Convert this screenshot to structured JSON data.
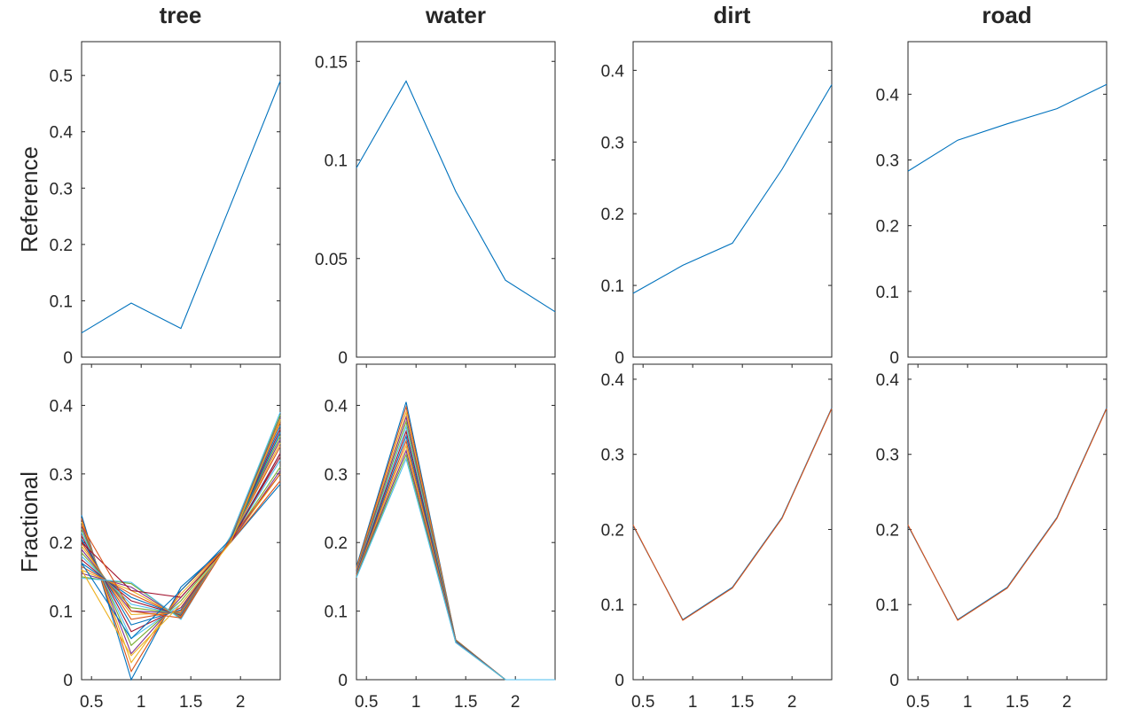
{
  "colors": {
    "reference_line": "#0072BD",
    "axes": "#262626",
    "fractional_palette": [
      "#0072BD",
      "#D95319",
      "#EDB120",
      "#7E2F8E",
      "#77AC30",
      "#4DBEEE",
      "#A2142F"
    ]
  },
  "column_titles": [
    "tree",
    "water",
    "dirt",
    "road"
  ],
  "row_labels": [
    "Reference",
    "Fractional"
  ],
  "chart_data": [
    {
      "type": "line",
      "name": "tree-reference",
      "title": "tree",
      "ylabel": "Reference",
      "x": [
        0.4,
        0.9,
        1.4,
        1.9,
        2.4
      ],
      "xlim": [
        0.4,
        2.4
      ],
      "ylim": [
        0,
        0.56
      ],
      "yticks": [
        0,
        0.1,
        0.2,
        0.3,
        0.4,
        0.5
      ],
      "ytick_labels": [
        "0",
        "0.1",
        "0.2",
        "0.3",
        "0.4",
        "0.5"
      ],
      "xticks": [],
      "xtick_labels": [],
      "series": [
        {
          "values": [
            0.043,
            0.096,
            0.051,
            0.27,
            0.49
          ]
        }
      ]
    },
    {
      "type": "line",
      "name": "water-reference",
      "title": "water",
      "ylabel": "",
      "x": [
        0.4,
        0.9,
        1.4,
        1.9,
        2.4
      ],
      "xlim": [
        0.4,
        2.4
      ],
      "ylim": [
        0,
        0.16
      ],
      "yticks": [
        0,
        0.05,
        0.1,
        0.15
      ],
      "ytick_labels": [
        "0",
        "0.05",
        "0.1",
        "0.15"
      ],
      "xticks": [],
      "xtick_labels": [],
      "series": [
        {
          "values": [
            0.096,
            0.14,
            0.084,
            0.039,
            0.023
          ]
        }
      ]
    },
    {
      "type": "line",
      "name": "dirt-reference",
      "title": "dirt",
      "ylabel": "",
      "x": [
        0.4,
        0.9,
        1.4,
        1.9,
        2.4
      ],
      "xlim": [
        0.4,
        2.4
      ],
      "ylim": [
        0,
        0.44
      ],
      "yticks": [
        0,
        0.1,
        0.2,
        0.3,
        0.4
      ],
      "ytick_labels": [
        "0",
        "0.1",
        "0.2",
        "0.3",
        "0.4"
      ],
      "xticks": [],
      "xtick_labels": [],
      "series": [
        {
          "values": [
            0.089,
            0.128,
            0.159,
            0.262,
            0.38
          ]
        }
      ]
    },
    {
      "type": "line",
      "name": "road-reference",
      "title": "road",
      "ylabel": "",
      "x": [
        0.4,
        0.9,
        1.4,
        1.9,
        2.4
      ],
      "xlim": [
        0.4,
        2.4
      ],
      "ylim": [
        0,
        0.48
      ],
      "yticks": [
        0,
        0.1,
        0.2,
        0.3,
        0.4
      ],
      "ytick_labels": [
        "0",
        "0.1",
        "0.2",
        "0.3",
        "0.4"
      ],
      "xticks": [],
      "xtick_labels": [],
      "series": [
        {
          "values": [
            0.283,
            0.33,
            0.355,
            0.378,
            0.415
          ]
        }
      ]
    },
    {
      "type": "line",
      "name": "tree-fractional",
      "title": "",
      "ylabel": "Fractional",
      "x": [
        0.4,
        0.9,
        1.4,
        1.9,
        2.4
      ],
      "xlim": [
        0.4,
        2.4
      ],
      "ylim": [
        0,
        0.46
      ],
      "yticks": [
        0,
        0.1,
        0.2,
        0.3,
        0.4
      ],
      "ytick_labels": [
        "0",
        "0.1",
        "0.2",
        "0.3",
        "0.4"
      ],
      "xticks": [
        0.5,
        1,
        1.5,
        2
      ],
      "xtick_labels": [
        "0.5",
        "1",
        "1.5",
        "2"
      ],
      "series": [
        {
          "values": [
            0.24,
            0.0,
            0.135,
            0.2,
            0.285
          ]
        },
        {
          "values": [
            0.235,
            0.012,
            0.13,
            0.2,
            0.29
          ]
        },
        {
          "values": [
            0.23,
            0.025,
            0.125,
            0.2,
            0.3
          ]
        },
        {
          "values": [
            0.225,
            0.038,
            0.12,
            0.2,
            0.305
          ]
        },
        {
          "values": [
            0.22,
            0.05,
            0.115,
            0.202,
            0.31
          ]
        },
        {
          "values": [
            0.215,
            0.06,
            0.11,
            0.202,
            0.32
          ]
        },
        {
          "values": [
            0.21,
            0.07,
            0.105,
            0.203,
            0.325
          ]
        },
        {
          "values": [
            0.205,
            0.08,
            0.102,
            0.203,
            0.33
          ]
        },
        {
          "values": [
            0.2,
            0.088,
            0.1,
            0.204,
            0.34
          ]
        },
        {
          "values": [
            0.195,
            0.095,
            0.098,
            0.204,
            0.345
          ]
        },
        {
          "values": [
            0.19,
            0.1,
            0.097,
            0.205,
            0.35
          ]
        },
        {
          "values": [
            0.185,
            0.105,
            0.096,
            0.205,
            0.355
          ]
        },
        {
          "values": [
            0.18,
            0.11,
            0.095,
            0.206,
            0.36
          ]
        },
        {
          "values": [
            0.175,
            0.115,
            0.094,
            0.206,
            0.365
          ]
        },
        {
          "values": [
            0.17,
            0.12,
            0.093,
            0.207,
            0.37
          ]
        },
        {
          "values": [
            0.165,
            0.125,
            0.092,
            0.207,
            0.375
          ]
        },
        {
          "values": [
            0.16,
            0.13,
            0.091,
            0.208,
            0.378
          ]
        },
        {
          "values": [
            0.155,
            0.135,
            0.09,
            0.208,
            0.382
          ]
        },
        {
          "values": [
            0.15,
            0.14,
            0.089,
            0.209,
            0.386
          ]
        },
        {
          "values": [
            0.148,
            0.142,
            0.088,
            0.209,
            0.39
          ]
        },
        {
          "values": [
            0.2,
            0.13,
            0.12,
            0.2,
            0.33
          ]
        },
        {
          "values": [
            0.17,
            0.06,
            0.13,
            0.205,
            0.36
          ]
        },
        {
          "values": [
            0.225,
            0.1,
            0.09,
            0.205,
            0.3
          ]
        },
        {
          "values": [
            0.16,
            0.035,
            0.11,
            0.2,
            0.38
          ]
        }
      ]
    },
    {
      "type": "line",
      "name": "water-fractional",
      "title": "",
      "ylabel": "",
      "x": [
        0.4,
        0.9,
        1.4,
        1.9,
        2.4
      ],
      "xlim": [
        0.4,
        2.4
      ],
      "ylim": [
        0,
        0.46
      ],
      "yticks": [
        0,
        0.1,
        0.2,
        0.3,
        0.4
      ],
      "ytick_labels": [
        "0",
        "0.1",
        "0.2",
        "0.3",
        "0.4"
      ],
      "xticks": [
        0.5,
        1,
        1.5,
        2
      ],
      "xtick_labels": [
        "0.5",
        "1",
        "1.5",
        "2"
      ],
      "series": [
        {
          "values": [
            0.165,
            0.405,
            0.058,
            0.0,
            0.0
          ]
        },
        {
          "values": [
            0.163,
            0.398,
            0.058,
            0.0,
            0.0
          ]
        },
        {
          "values": [
            0.161,
            0.39,
            0.057,
            0.0,
            0.0
          ]
        },
        {
          "values": [
            0.159,
            0.383,
            0.057,
            0.0,
            0.0
          ]
        },
        {
          "values": [
            0.157,
            0.376,
            0.057,
            0.0,
            0.0
          ]
        },
        {
          "values": [
            0.156,
            0.369,
            0.056,
            0.0,
            0.0
          ]
        },
        {
          "values": [
            0.155,
            0.362,
            0.056,
            0.0,
            0.0
          ]
        },
        {
          "values": [
            0.154,
            0.355,
            0.056,
            0.0,
            0.0
          ]
        },
        {
          "values": [
            0.153,
            0.348,
            0.055,
            0.0,
            0.0
          ]
        },
        {
          "values": [
            0.152,
            0.341,
            0.055,
            0.0,
            0.0
          ]
        },
        {
          "values": [
            0.151,
            0.334,
            0.055,
            0.0,
            0.0
          ]
        },
        {
          "values": [
            0.15,
            0.328,
            0.054,
            0.0,
            0.0
          ]
        },
        {
          "values": [
            0.149,
            0.322,
            0.054,
            0.0,
            0.0
          ]
        }
      ]
    },
    {
      "type": "line",
      "name": "dirt-fractional",
      "title": "",
      "ylabel": "",
      "x": [
        0.4,
        0.9,
        1.4,
        1.9,
        2.4
      ],
      "xlim": [
        0.4,
        2.4
      ],
      "ylim": [
        0,
        0.42
      ],
      "yticks": [
        0,
        0.1,
        0.2,
        0.3,
        0.4
      ],
      "ytick_labels": [
        "0",
        "0.1",
        "0.2",
        "0.3",
        "0.4"
      ],
      "xticks": [
        0.5,
        1,
        1.5,
        2
      ],
      "xtick_labels": [
        "0.5",
        "1",
        "1.5",
        "2"
      ],
      "series": [
        {
          "values": [
            0.205,
            0.08,
            0.123,
            0.216,
            0.362
          ]
        },
        {
          "values": [
            0.206,
            0.079,
            0.122,
            0.215,
            0.361
          ]
        }
      ]
    },
    {
      "type": "line",
      "name": "road-fractional",
      "title": "",
      "ylabel": "",
      "x": [
        0.4,
        0.9,
        1.4,
        1.9,
        2.4
      ],
      "xlim": [
        0.4,
        2.4
      ],
      "ylim": [
        0,
        0.42
      ],
      "yticks": [
        0,
        0.1,
        0.2,
        0.3,
        0.4
      ],
      "ytick_labels": [
        "0",
        "0.1",
        "0.2",
        "0.3",
        "0.4"
      ],
      "xticks": [
        0.5,
        1,
        1.5,
        2
      ],
      "xtick_labels": [
        "0.5",
        "1",
        "1.5",
        "2"
      ],
      "series": [
        {
          "values": [
            0.205,
            0.08,
            0.123,
            0.216,
            0.362
          ]
        },
        {
          "values": [
            0.206,
            0.079,
            0.122,
            0.215,
            0.361
          ]
        }
      ]
    }
  ]
}
